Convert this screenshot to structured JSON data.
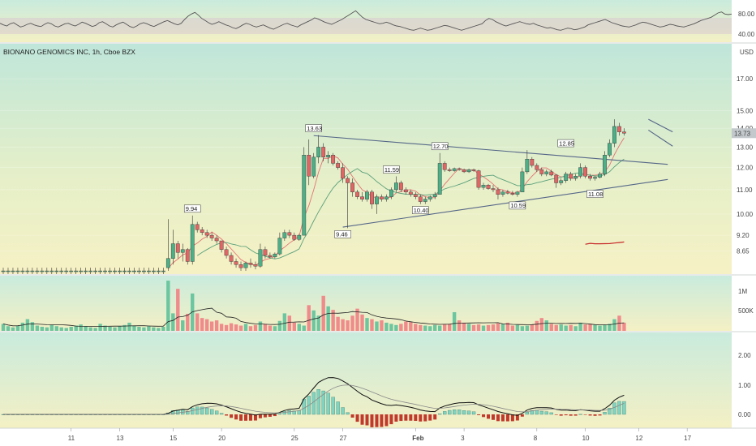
{
  "header": {
    "title": "BIONANO GENOMICS INC, 1h, Cboe BZX",
    "currency": "USD",
    "last_price": "13.73"
  },
  "colors": {
    "up": "#4caf87",
    "down": "#e06666",
    "ma_short": "#e57373",
    "ma_mid": "#5aa07a",
    "ma_long": "#c62828",
    "trendline": "#556688",
    "macd": "#111111",
    "signal": "#888888",
    "rsi": "#555555",
    "price_tag": "#c2c8cc"
  },
  "rsi": {
    "levels": [
      "80.00",
      "40.00"
    ],
    "values": [
      55,
      52,
      50,
      54,
      56,
      52,
      48,
      50,
      53,
      55,
      52,
      50,
      49,
      53,
      56,
      54,
      50,
      48,
      51,
      54,
      55,
      52,
      50,
      53,
      57,
      55,
      52,
      49,
      51,
      56,
      58,
      54,
      50,
      48,
      52,
      55,
      57,
      53,
      49,
      47,
      50,
      54,
      56,
      54,
      51,
      49,
      52,
      55,
      58,
      60,
      57,
      54,
      52,
      55,
      62,
      68,
      72,
      75,
      70,
      64,
      60,
      56,
      53,
      55,
      58,
      55,
      52,
      50,
      47,
      45,
      48,
      52,
      55,
      53,
      50,
      48,
      50,
      52,
      49,
      46,
      44,
      47,
      50,
      53,
      55,
      52,
      50,
      48,
      52,
      55,
      58,
      61,
      65,
      63,
      60,
      57,
      55,
      53,
      56,
      59,
      62,
      66,
      70,
      74,
      78,
      72,
      66,
      62,
      60,
      58,
      56,
      54,
      55,
      57,
      55,
      52,
      50,
      49,
      47,
      45,
      43,
      42,
      44,
      46,
      44,
      42,
      43,
      45,
      47,
      49,
      51,
      50,
      48,
      46,
      44,
      42,
      44,
      46,
      48,
      50,
      52,
      54,
      60,
      64,
      62,
      58,
      55,
      52,
      50,
      52,
      54,
      56,
      58,
      56,
      54,
      53,
      55,
      52,
      50,
      48,
      46,
      47,
      45,
      43,
      42,
      44,
      46,
      45,
      43,
      44,
      46,
      48,
      52,
      54,
      56,
      58,
      60,
      62,
      59,
      56,
      54,
      52,
      50,
      49,
      48,
      50,
      52,
      55,
      57,
      56,
      54,
      52,
      50,
      48,
      49,
      51,
      53,
      52,
      50,
      49,
      48,
      50,
      52,
      54,
      57,
      60,
      62,
      64,
      66,
      70,
      74,
      76,
      72,
      71,
      72
    ]
  },
  "macd_panel": {
    "levels": [
      "2.00",
      "1.00",
      "0.00"
    ]
  },
  "volume_panel": {
    "levels": [
      "1M",
      "500K"
    ]
  },
  "chart_data": {
    "type": "candlestick",
    "title": "BIONANO GENOMICS INC, 1h, Cboe BZX",
    "ylabel": "USD",
    "scale": "log",
    "ylim": [
      7.9,
      19.5
    ],
    "y_ticks": [
      "17.00",
      "15.00",
      "14.00",
      "13.00",
      "12.00",
      "11.00",
      "10.00",
      "9.20",
      "8.65"
    ],
    "x_ticks": [
      {
        "label": "11",
        "bar": 14
      },
      {
        "label": "13",
        "bar": 24
      },
      {
        "label": "15",
        "bar": 35
      },
      {
        "label": "20",
        "bar": 45
      },
      {
        "label": "25",
        "bar": 60
      },
      {
        "label": "27",
        "bar": 70
      },
      {
        "label": "Feb",
        "bar": 85
      },
      {
        "label": "3",
        "bar": 95
      },
      {
        "label": "8",
        "bar": 110
      },
      {
        "label": "10",
        "bar": 120
      },
      {
        "label": "12",
        "bar": 131
      },
      {
        "label": "17",
        "bar": 141
      }
    ],
    "price_callouts": [
      {
        "text": "9.94",
        "bar": 39,
        "value": 9.94
      },
      {
        "text": "13.63",
        "bar": 64,
        "value": 13.63
      },
      {
        "text": "9.46",
        "bar": 70,
        "value": 9.46
      },
      {
        "text": "11.59",
        "bar": 80,
        "value": 11.59
      },
      {
        "text": "10.40",
        "bar": 86,
        "value": 10.4
      },
      {
        "text": "12.70",
        "bar": 90,
        "value": 12.7
      },
      {
        "text": "10.59",
        "bar": 106,
        "value": 10.59
      },
      {
        "text": "12.85",
        "bar": 116,
        "value": 12.85
      },
      {
        "text": "11.08",
        "bar": 122,
        "value": 11.08
      }
    ],
    "trendlines": [
      {
        "name": "upper",
        "from": {
          "bar": 64,
          "value": 13.6
        },
        "to": {
          "bar": 137,
          "value": 12.15
        }
      },
      {
        "name": "lower",
        "from": {
          "bar": 70,
          "value": 9.5
        },
        "to": {
          "bar": 137,
          "value": 11.45
        }
      },
      {
        "name": "channel_top",
        "from": {
          "bar": 133,
          "value": 14.5
        },
        "to": {
          "bar": 138,
          "value": 13.8
        }
      },
      {
        "name": "channel_bottom",
        "from": {
          "bar": 133,
          "value": 13.9
        },
        "to": {
          "bar": 138,
          "value": 13.05
        }
      }
    ],
    "candles": [
      {
        "o": 8.0,
        "h": 8.1,
        "l": 7.9,
        "c": 8.0
      },
      {
        "o": 8.0,
        "h": 8.1,
        "l": 7.9,
        "c": 8.0
      },
      {
        "o": 8.0,
        "h": 8.1,
        "l": 7.9,
        "c": 8.0
      },
      {
        "o": 8.0,
        "h": 8.1,
        "l": 7.9,
        "c": 8.0
      },
      {
        "o": 8.0,
        "h": 8.1,
        "l": 7.9,
        "c": 8.0
      },
      {
        "o": 8.0,
        "h": 8.1,
        "l": 7.9,
        "c": 8.0
      },
      {
        "o": 8.0,
        "h": 8.1,
        "l": 7.9,
        "c": 8.0
      },
      {
        "o": 8.0,
        "h": 8.1,
        "l": 7.9,
        "c": 8.0
      },
      {
        "o": 8.0,
        "h": 8.1,
        "l": 7.9,
        "c": 8.0
      },
      {
        "o": 8.0,
        "h": 8.1,
        "l": 7.9,
        "c": 8.0
      },
      {
        "o": 8.0,
        "h": 8.1,
        "l": 7.9,
        "c": 8.0
      },
      {
        "o": 8.0,
        "h": 8.1,
        "l": 7.9,
        "c": 8.0
      },
      {
        "o": 8.0,
        "h": 8.1,
        "l": 7.9,
        "c": 8.0
      },
      {
        "o": 8.0,
        "h": 8.1,
        "l": 7.9,
        "c": 8.0
      },
      {
        "o": 8.0,
        "h": 8.1,
        "l": 7.9,
        "c": 8.0
      },
      {
        "o": 8.0,
        "h": 8.1,
        "l": 7.9,
        "c": 8.0
      },
      {
        "o": 8.0,
        "h": 8.1,
        "l": 7.9,
        "c": 8.0
      },
      {
        "o": 8.0,
        "h": 8.1,
        "l": 7.9,
        "c": 8.0
      },
      {
        "o": 8.0,
        "h": 8.1,
        "l": 7.9,
        "c": 8.0
      },
      {
        "o": 8.0,
        "h": 8.1,
        "l": 7.9,
        "c": 8.0
      },
      {
        "o": 8.0,
        "h": 8.1,
        "l": 7.9,
        "c": 8.0
      },
      {
        "o": 8.0,
        "h": 8.1,
        "l": 7.9,
        "c": 8.0
      },
      {
        "o": 8.0,
        "h": 8.1,
        "l": 7.9,
        "c": 8.0
      },
      {
        "o": 8.0,
        "h": 8.1,
        "l": 7.9,
        "c": 8.0
      },
      {
        "o": 8.0,
        "h": 8.1,
        "l": 7.9,
        "c": 8.0
      },
      {
        "o": 8.0,
        "h": 8.1,
        "l": 7.9,
        "c": 8.0
      },
      {
        "o": 8.0,
        "h": 8.1,
        "l": 7.9,
        "c": 8.0
      },
      {
        "o": 8.0,
        "h": 8.1,
        "l": 7.9,
        "c": 8.0
      },
      {
        "o": 8.0,
        "h": 8.1,
        "l": 7.9,
        "c": 8.0
      },
      {
        "o": 8.0,
        "h": 8.1,
        "l": 7.9,
        "c": 8.0
      },
      {
        "o": 8.0,
        "h": 8.1,
        "l": 7.9,
        "c": 8.0
      },
      {
        "o": 8.0,
        "h": 8.1,
        "l": 7.9,
        "c": 8.0
      },
      {
        "o": 8.0,
        "h": 8.1,
        "l": 7.9,
        "c": 8.0
      },
      {
        "o": 8.0,
        "h": 8.1,
        "l": 7.9,
        "c": 8.0
      },
      {
        "o": 8.1,
        "h": 9.8,
        "l": 8.0,
        "c": 8.4
      },
      {
        "o": 8.4,
        "h": 9.4,
        "l": 8.2,
        "c": 8.9
      },
      {
        "o": 8.9,
        "h": 9.0,
        "l": 8.4,
        "c": 8.6
      },
      {
        "o": 8.6,
        "h": 8.9,
        "l": 8.3,
        "c": 8.7
      },
      {
        "o": 8.7,
        "h": 8.75,
        "l": 8.2,
        "c": 8.3
      },
      {
        "o": 8.3,
        "h": 9.94,
        "l": 8.2,
        "c": 9.6
      },
      {
        "o": 9.6,
        "h": 9.7,
        "l": 9.3,
        "c": 9.4
      },
      {
        "o": 9.4,
        "h": 9.5,
        "l": 9.2,
        "c": 9.3
      },
      {
        "o": 9.3,
        "h": 9.4,
        "l": 9.1,
        "c": 9.2
      },
      {
        "o": 9.2,
        "h": 9.3,
        "l": 9.0,
        "c": 9.1
      },
      {
        "o": 9.1,
        "h": 9.2,
        "l": 8.9,
        "c": 9.0
      },
      {
        "o": 9.0,
        "h": 9.0,
        "l": 8.6,
        "c": 8.7
      },
      {
        "o": 8.7,
        "h": 8.8,
        "l": 8.4,
        "c": 8.5
      },
      {
        "o": 8.5,
        "h": 8.6,
        "l": 8.2,
        "c": 8.3
      },
      {
        "o": 8.3,
        "h": 8.4,
        "l": 8.1,
        "c": 8.2
      },
      {
        "o": 8.2,
        "h": 8.3,
        "l": 8.0,
        "c": 8.1
      },
      {
        "o": 8.1,
        "h": 8.3,
        "l": 8.0,
        "c": 8.25
      },
      {
        "o": 8.25,
        "h": 8.4,
        "l": 8.1,
        "c": 8.2
      },
      {
        "o": 8.2,
        "h": 8.3,
        "l": 8.05,
        "c": 8.15
      },
      {
        "o": 8.15,
        "h": 8.9,
        "l": 8.1,
        "c": 8.7
      },
      {
        "o": 8.7,
        "h": 8.8,
        "l": 8.4,
        "c": 8.5
      },
      {
        "o": 8.5,
        "h": 8.6,
        "l": 8.4,
        "c": 8.45
      },
      {
        "o": 8.45,
        "h": 8.6,
        "l": 8.4,
        "c": 8.55
      },
      {
        "o": 8.55,
        "h": 9.3,
        "l": 8.5,
        "c": 9.1
      },
      {
        "o": 9.1,
        "h": 9.4,
        "l": 9.0,
        "c": 9.3
      },
      {
        "o": 9.3,
        "h": 9.4,
        "l": 9.1,
        "c": 9.2
      },
      {
        "o": 9.2,
        "h": 9.3,
        "l": 9.0,
        "c": 9.05
      },
      {
        "o": 9.05,
        "h": 9.25,
        "l": 9.0,
        "c": 9.2
      },
      {
        "o": 9.2,
        "h": 13.0,
        "l": 9.2,
        "c": 12.6
      },
      {
        "o": 12.6,
        "h": 13.4,
        "l": 11.2,
        "c": 11.6
      },
      {
        "o": 11.6,
        "h": 12.7,
        "l": 11.5,
        "c": 12.5
      },
      {
        "o": 12.5,
        "h": 13.63,
        "l": 12.2,
        "c": 13.0
      },
      {
        "o": 13.0,
        "h": 13.2,
        "l": 12.3,
        "c": 12.5
      },
      {
        "o": 12.5,
        "h": 12.8,
        "l": 12.2,
        "c": 12.6
      },
      {
        "o": 12.6,
        "h": 12.7,
        "l": 12.1,
        "c": 12.2
      },
      {
        "o": 12.2,
        "h": 12.3,
        "l": 11.9,
        "c": 12.0
      },
      {
        "o": 12.0,
        "h": 12.2,
        "l": 11.3,
        "c": 11.5
      },
      {
        "o": 11.5,
        "h": 11.6,
        "l": 9.46,
        "c": 11.3
      },
      {
        "o": 11.3,
        "h": 11.5,
        "l": 10.7,
        "c": 10.9
      },
      {
        "o": 10.9,
        "h": 11.0,
        "l": 10.6,
        "c": 10.7
      },
      {
        "o": 10.7,
        "h": 10.9,
        "l": 10.5,
        "c": 10.6
      },
      {
        "o": 10.6,
        "h": 11.0,
        "l": 10.5,
        "c": 10.9
      },
      {
        "o": 10.9,
        "h": 11.0,
        "l": 10.2,
        "c": 10.4
      },
      {
        "o": 10.4,
        "h": 10.8,
        "l": 10.0,
        "c": 10.7
      },
      {
        "o": 10.7,
        "h": 10.8,
        "l": 10.5,
        "c": 10.6
      },
      {
        "o": 10.6,
        "h": 10.8,
        "l": 10.5,
        "c": 10.7
      },
      {
        "o": 10.7,
        "h": 11.1,
        "l": 10.6,
        "c": 11.0
      },
      {
        "o": 11.0,
        "h": 11.59,
        "l": 10.9,
        "c": 11.3
      },
      {
        "o": 11.3,
        "h": 11.4,
        "l": 10.9,
        "c": 11.0
      },
      {
        "o": 11.0,
        "h": 11.1,
        "l": 10.8,
        "c": 10.9
      },
      {
        "o": 10.9,
        "h": 11.0,
        "l": 10.7,
        "c": 10.8
      },
      {
        "o": 10.8,
        "h": 10.9,
        "l": 10.6,
        "c": 10.7
      },
      {
        "o": 10.7,
        "h": 10.8,
        "l": 10.4,
        "c": 10.5
      },
      {
        "o": 10.5,
        "h": 10.7,
        "l": 10.4,
        "c": 10.6
      },
      {
        "o": 10.6,
        "h": 10.75,
        "l": 10.5,
        "c": 10.7
      },
      {
        "o": 10.7,
        "h": 10.9,
        "l": 10.6,
        "c": 10.8
      },
      {
        "o": 10.8,
        "h": 12.7,
        "l": 10.8,
        "c": 12.2
      },
      {
        "o": 12.2,
        "h": 12.3,
        "l": 11.8,
        "c": 11.9
      },
      {
        "o": 11.9,
        "h": 12.0,
        "l": 11.8,
        "c": 11.85
      },
      {
        "o": 11.85,
        "h": 12.0,
        "l": 11.8,
        "c": 11.95
      },
      {
        "o": 11.95,
        "h": 12.0,
        "l": 11.85,
        "c": 11.9
      },
      {
        "o": 11.9,
        "h": 11.95,
        "l": 11.75,
        "c": 11.8
      },
      {
        "o": 11.8,
        "h": 11.95,
        "l": 11.75,
        "c": 11.9
      },
      {
        "o": 11.9,
        "h": 11.95,
        "l": 11.8,
        "c": 11.85
      },
      {
        "o": 11.85,
        "h": 11.9,
        "l": 11.0,
        "c": 11.1
      },
      {
        "o": 11.1,
        "h": 11.3,
        "l": 11.0,
        "c": 11.2
      },
      {
        "o": 11.2,
        "h": 11.25,
        "l": 11.0,
        "c": 11.05
      },
      {
        "o": 11.05,
        "h": 11.2,
        "l": 10.9,
        "c": 11.0
      },
      {
        "o": 11.0,
        "h": 11.1,
        "l": 10.59,
        "c": 10.8
      },
      {
        "o": 10.8,
        "h": 11.0,
        "l": 10.7,
        "c": 10.9
      },
      {
        "o": 10.9,
        "h": 11.0,
        "l": 10.8,
        "c": 10.85
      },
      {
        "o": 10.85,
        "h": 10.95,
        "l": 10.75,
        "c": 10.8
      },
      {
        "o": 10.8,
        "h": 10.95,
        "l": 10.7,
        "c": 10.9
      },
      {
        "o": 10.9,
        "h": 12.0,
        "l": 10.9,
        "c": 11.8
      },
      {
        "o": 11.8,
        "h": 12.85,
        "l": 11.7,
        "c": 12.4
      },
      {
        "o": 12.4,
        "h": 12.5,
        "l": 12.0,
        "c": 12.1
      },
      {
        "o": 12.1,
        "h": 12.2,
        "l": 11.8,
        "c": 11.9
      },
      {
        "o": 11.9,
        "h": 12.0,
        "l": 11.6,
        "c": 11.7
      },
      {
        "o": 11.7,
        "h": 11.9,
        "l": 11.6,
        "c": 11.8
      },
      {
        "o": 11.8,
        "h": 11.9,
        "l": 11.6,
        "c": 11.65
      },
      {
        "o": 11.65,
        "h": 11.7,
        "l": 11.08,
        "c": 11.3
      },
      {
        "o": 11.3,
        "h": 11.5,
        "l": 11.2,
        "c": 11.4
      },
      {
        "o": 11.4,
        "h": 11.8,
        "l": 11.3,
        "c": 11.7
      },
      {
        "o": 11.7,
        "h": 11.8,
        "l": 11.4,
        "c": 11.5
      },
      {
        "o": 11.5,
        "h": 11.7,
        "l": 11.4,
        "c": 11.6
      },
      {
        "o": 11.6,
        "h": 12.2,
        "l": 11.5,
        "c": 12.0
      },
      {
        "o": 12.0,
        "h": 12.1,
        "l": 11.5,
        "c": 11.6
      },
      {
        "o": 11.6,
        "h": 11.7,
        "l": 11.4,
        "c": 11.5
      },
      {
        "o": 11.5,
        "h": 11.6,
        "l": 11.4,
        "c": 11.55
      },
      {
        "o": 11.55,
        "h": 11.8,
        "l": 11.5,
        "c": 11.7
      },
      {
        "o": 11.7,
        "h": 12.8,
        "l": 11.6,
        "c": 12.6
      },
      {
        "o": 12.6,
        "h": 13.4,
        "l": 12.5,
        "c": 13.2
      },
      {
        "o": 13.2,
        "h": 14.5,
        "l": 13.0,
        "c": 14.1
      },
      {
        "o": 14.1,
        "h": 14.3,
        "l": 13.6,
        "c": 13.8
      },
      {
        "o": 13.8,
        "h": 14.0,
        "l": 13.6,
        "c": 13.73
      }
    ],
    "volume": [
      120,
      80,
      60,
      90,
      140,
      200,
      150,
      90,
      70,
      60,
      100,
      80,
      60,
      50,
      70,
      90,
      110,
      80,
      60,
      50,
      120,
      90,
      70,
      60,
      80,
      100,
      140,
      90,
      70,
      60,
      80,
      60,
      50,
      70,
      860,
      300,
      720,
      180,
      290,
      640,
      300,
      220,
      200,
      160,
      180,
      120,
      100,
      130,
      110,
      90,
      120,
      80,
      100,
      160,
      120,
      90,
      80,
      170,
      300,
      260,
      140,
      120,
      90,
      440,
      350,
      260,
      600,
      420,
      360,
      240,
      200,
      180,
      260,
      380,
      280,
      220,
      200,
      160,
      180,
      140,
      120,
      100,
      120,
      160,
      150,
      120,
      100,
      90,
      80,
      100,
      90,
      110,
      120,
      320,
      180,
      140,
      120,
      100,
      110,
      90,
      100,
      110,
      130,
      120,
      140,
      90,
      100,
      80,
      90,
      110,
      170,
      220,
      180,
      120,
      100,
      110,
      90,
      100,
      80,
      140,
      110,
      120,
      100,
      90,
      100,
      120,
      200,
      260,
      140,
      100
    ]
  }
}
